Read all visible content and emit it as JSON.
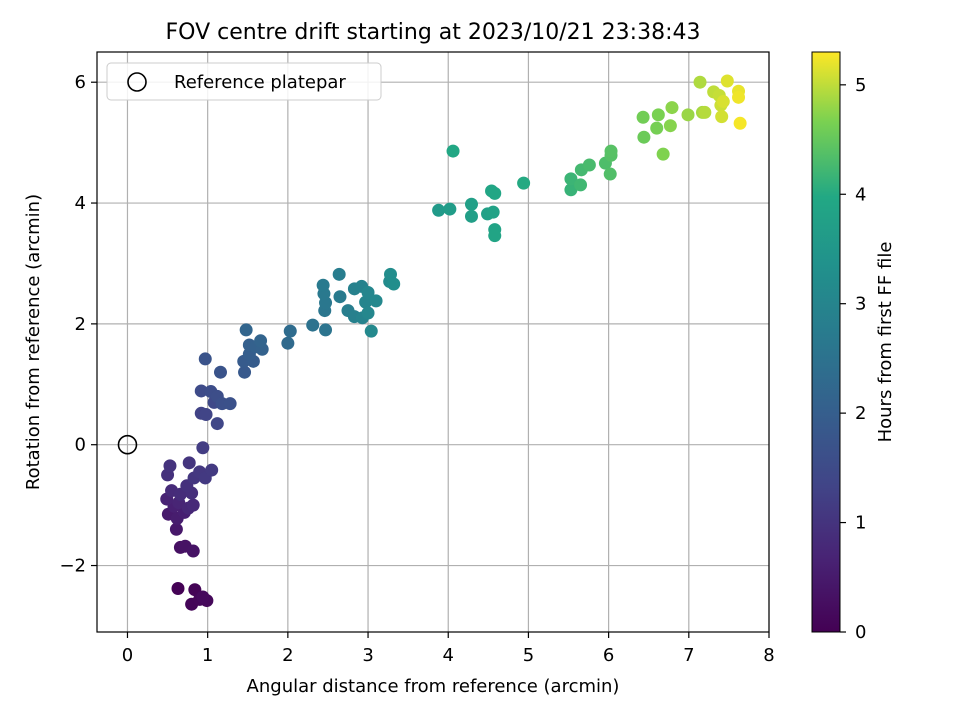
{
  "chart_data": {
    "type": "scatter",
    "title": "FOV centre drift starting at 2023/10/21 23:38:43",
    "xlabel": "Angular distance from reference (arcmin)",
    "ylabel": "Rotation from reference (arcmin)",
    "xlim": [
      -0.38,
      8.0
    ],
    "ylim": [
      -3.1,
      6.5
    ],
    "xticks": [
      0,
      1,
      2,
      3,
      4,
      5,
      6,
      7,
      8
    ],
    "yticks": [
      -2,
      0,
      2,
      4,
      6
    ],
    "ytick_labels": [
      "−2",
      "0",
      "2",
      "4",
      "6"
    ],
    "grid": true,
    "legend": {
      "location": "top-left",
      "entries": [
        "Reference platepar"
      ]
    },
    "reference_point": {
      "x": 0,
      "y": 0
    },
    "colorbar": {
      "label": "Hours from first FF file",
      "range": [
        0,
        5.3
      ],
      "ticks": [
        0,
        1,
        2,
        3,
        4,
        5
      ],
      "colormap": "viridis"
    },
    "points": [
      {
        "x": 0.63,
        "y": -2.38,
        "c": 0.02
      },
      {
        "x": 0.84,
        "y": -2.4,
        "c": 0.05
      },
      {
        "x": 0.8,
        "y": -2.64,
        "c": 0.08
      },
      {
        "x": 0.9,
        "y": -2.56,
        "c": 0.1
      },
      {
        "x": 0.99,
        "y": -2.58,
        "c": 0.13
      },
      {
        "x": 0.94,
        "y": -2.52,
        "c": 0.16
      },
      {
        "x": 0.66,
        "y": -1.7,
        "c": 0.3
      },
      {
        "x": 0.72,
        "y": -1.68,
        "c": 0.33
      },
      {
        "x": 0.82,
        "y": -1.76,
        "c": 0.36
      },
      {
        "x": 0.61,
        "y": -1.4,
        "c": 0.45
      },
      {
        "x": 0.51,
        "y": -1.15,
        "c": 0.5
      },
      {
        "x": 0.62,
        "y": -1.22,
        "c": 0.55
      },
      {
        "x": 0.71,
        "y": -1.12,
        "c": 0.6
      },
      {
        "x": 0.58,
        "y": -1.02,
        "c": 0.62
      },
      {
        "x": 0.49,
        "y": -0.9,
        "c": 0.66
      },
      {
        "x": 0.64,
        "y": -0.96,
        "c": 0.7
      },
      {
        "x": 0.76,
        "y": -1.05,
        "c": 0.74
      },
      {
        "x": 0.82,
        "y": -1.0,
        "c": 0.78
      },
      {
        "x": 0.55,
        "y": -0.76,
        "c": 0.82
      },
      {
        "x": 0.66,
        "y": -0.82,
        "c": 0.86
      },
      {
        "x": 0.8,
        "y": -0.8,
        "c": 0.9
      },
      {
        "x": 0.74,
        "y": -0.68,
        "c": 0.92
      },
      {
        "x": 0.5,
        "y": -0.5,
        "c": 0.95
      },
      {
        "x": 0.53,
        "y": -0.35,
        "c": 0.98
      },
      {
        "x": 0.77,
        "y": -0.3,
        "c": 1.02
      },
      {
        "x": 0.83,
        "y": -0.55,
        "c": 1.05
      },
      {
        "x": 0.9,
        "y": -0.45,
        "c": 1.08
      },
      {
        "x": 0.97,
        "y": -0.55,
        "c": 1.1
      },
      {
        "x": 1.05,
        "y": -0.42,
        "c": 1.13
      },
      {
        "x": 0.94,
        "y": -0.05,
        "c": 1.18
      },
      {
        "x": 0.92,
        "y": 0.52,
        "c": 1.3
      },
      {
        "x": 0.98,
        "y": 0.5,
        "c": 1.35
      },
      {
        "x": 1.12,
        "y": 0.35,
        "c": 1.4
      },
      {
        "x": 1.08,
        "y": 0.7,
        "c": 1.45
      },
      {
        "x": 0.92,
        "y": 0.89,
        "c": 1.5
      },
      {
        "x": 1.04,
        "y": 0.88,
        "c": 1.55
      },
      {
        "x": 1.12,
        "y": 0.8,
        "c": 1.58
      },
      {
        "x": 1.18,
        "y": 0.68,
        "c": 1.62
      },
      {
        "x": 1.28,
        "y": 0.68,
        "c": 1.66
      },
      {
        "x": 1.16,
        "y": 1.2,
        "c": 1.7
      },
      {
        "x": 0.97,
        "y": 1.42,
        "c": 1.72
      },
      {
        "x": 1.46,
        "y": 1.2,
        "c": 1.85
      },
      {
        "x": 1.45,
        "y": 1.38,
        "c": 1.9
      },
      {
        "x": 1.57,
        "y": 1.38,
        "c": 1.95
      },
      {
        "x": 1.52,
        "y": 1.5,
        "c": 2.0
      },
      {
        "x": 1.52,
        "y": 1.65,
        "c": 2.03
      },
      {
        "x": 1.6,
        "y": 1.62,
        "c": 2.06
      },
      {
        "x": 1.68,
        "y": 1.58,
        "c": 2.1
      },
      {
        "x": 1.66,
        "y": 1.72,
        "c": 2.13
      },
      {
        "x": 1.48,
        "y": 1.9,
        "c": 2.16
      },
      {
        "x": 2.0,
        "y": 1.68,
        "c": 2.3
      },
      {
        "x": 2.03,
        "y": 1.88,
        "c": 2.35
      },
      {
        "x": 2.31,
        "y": 1.98,
        "c": 2.5
      },
      {
        "x": 2.47,
        "y": 1.9,
        "c": 2.55
      },
      {
        "x": 2.46,
        "y": 2.22,
        "c": 2.6
      },
      {
        "x": 2.47,
        "y": 2.35,
        "c": 2.63
      },
      {
        "x": 2.45,
        "y": 2.5,
        "c": 2.67
      },
      {
        "x": 2.44,
        "y": 2.64,
        "c": 2.7
      },
      {
        "x": 2.65,
        "y": 2.45,
        "c": 2.74
      },
      {
        "x": 2.64,
        "y": 2.82,
        "c": 2.78
      },
      {
        "x": 2.75,
        "y": 2.22,
        "c": 2.82
      },
      {
        "x": 2.83,
        "y": 2.12,
        "c": 2.86
      },
      {
        "x": 2.83,
        "y": 2.58,
        "c": 2.9
      },
      {
        "x": 2.92,
        "y": 2.62,
        "c": 2.93
      },
      {
        "x": 2.93,
        "y": 2.1,
        "c": 2.96
      },
      {
        "x": 2.97,
        "y": 2.36,
        "c": 3.0
      },
      {
        "x": 3.0,
        "y": 2.52,
        "c": 3.03
      },
      {
        "x": 3.0,
        "y": 2.18,
        "c": 3.06
      },
      {
        "x": 3.1,
        "y": 2.38,
        "c": 3.09
      },
      {
        "x": 3.04,
        "y": 1.88,
        "c": 3.12
      },
      {
        "x": 3.27,
        "y": 2.7,
        "c": 3.18
      },
      {
        "x": 3.28,
        "y": 2.82,
        "c": 3.22
      },
      {
        "x": 3.32,
        "y": 2.66,
        "c": 3.26
      },
      {
        "x": 3.88,
        "y": 3.88,
        "c": 3.6
      },
      {
        "x": 4.02,
        "y": 3.9,
        "c": 3.65
      },
      {
        "x": 4.29,
        "y": 3.78,
        "c": 3.7
      },
      {
        "x": 4.29,
        "y": 3.98,
        "c": 3.73
      },
      {
        "x": 4.49,
        "y": 3.82,
        "c": 3.76
      },
      {
        "x": 4.56,
        "y": 3.85,
        "c": 3.8
      },
      {
        "x": 4.58,
        "y": 3.56,
        "c": 3.83
      },
      {
        "x": 4.58,
        "y": 3.46,
        "c": 3.86
      },
      {
        "x": 4.54,
        "y": 4.2,
        "c": 3.9
      },
      {
        "x": 4.58,
        "y": 4.16,
        "c": 3.93
      },
      {
        "x": 4.06,
        "y": 4.86,
        "c": 3.96
      },
      {
        "x": 4.94,
        "y": 4.33,
        "c": 4.0
      },
      {
        "x": 5.53,
        "y": 4.22,
        "c": 4.15
      },
      {
        "x": 5.53,
        "y": 4.4,
        "c": 4.18
      },
      {
        "x": 5.65,
        "y": 4.3,
        "c": 4.22
      },
      {
        "x": 5.66,
        "y": 4.55,
        "c": 4.25
      },
      {
        "x": 5.76,
        "y": 4.63,
        "c": 4.28
      },
      {
        "x": 5.96,
        "y": 4.66,
        "c": 4.32
      },
      {
        "x": 6.02,
        "y": 4.48,
        "c": 4.35
      },
      {
        "x": 6.03,
        "y": 4.79,
        "c": 4.38
      },
      {
        "x": 6.03,
        "y": 4.86,
        "c": 4.4
      },
      {
        "x": 6.44,
        "y": 5.09,
        "c": 4.55
      },
      {
        "x": 6.43,
        "y": 5.42,
        "c": 4.6
      },
      {
        "x": 6.6,
        "y": 5.24,
        "c": 4.63
      },
      {
        "x": 6.62,
        "y": 5.46,
        "c": 4.66
      },
      {
        "x": 6.68,
        "y": 4.81,
        "c": 4.69
      },
      {
        "x": 6.77,
        "y": 5.28,
        "c": 4.72
      },
      {
        "x": 6.79,
        "y": 5.58,
        "c": 4.75
      },
      {
        "x": 6.99,
        "y": 5.46,
        "c": 4.82
      },
      {
        "x": 7.17,
        "y": 5.5,
        "c": 4.88
      },
      {
        "x": 7.14,
        "y": 6.0,
        "c": 4.92
      },
      {
        "x": 7.2,
        "y": 5.5,
        "c": 4.95
      },
      {
        "x": 7.31,
        "y": 5.84,
        "c": 5.0
      },
      {
        "x": 7.38,
        "y": 5.78,
        "c": 5.03
      },
      {
        "x": 7.4,
        "y": 5.62,
        "c": 5.06
      },
      {
        "x": 7.41,
        "y": 5.43,
        "c": 5.09
      },
      {
        "x": 7.43,
        "y": 5.68,
        "c": 5.12
      },
      {
        "x": 7.48,
        "y": 6.02,
        "c": 5.15
      },
      {
        "x": 7.62,
        "y": 5.85,
        "c": 5.2
      },
      {
        "x": 7.62,
        "y": 5.75,
        "c": 5.23
      },
      {
        "x": 7.64,
        "y": 5.32,
        "c": 5.26
      }
    ]
  }
}
